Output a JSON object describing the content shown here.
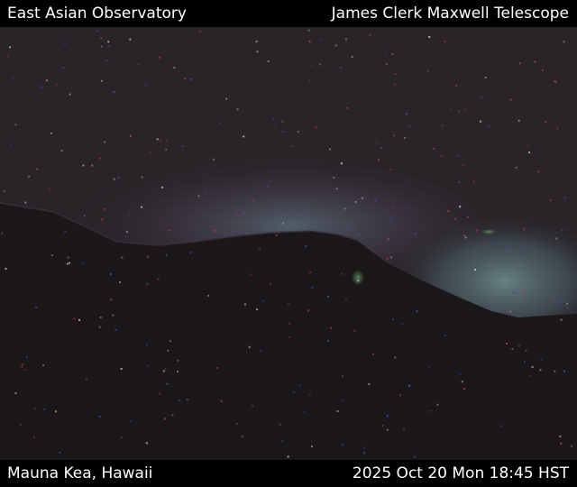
{
  "overlay": {
    "top_left": "East Asian Observatory",
    "top_right": "James Clerk Maxwell Telescope",
    "bottom_left": "Mauna Kea, Hawaii",
    "bottom_right": "2025 Oct 20 Mon 18:45 HST"
  },
  "colors": {
    "sky": "#2a2529",
    "mountain": "#1a1618",
    "horizon_glow": "#5d6e7a",
    "text": "#ffffff",
    "bars": "#000000"
  }
}
